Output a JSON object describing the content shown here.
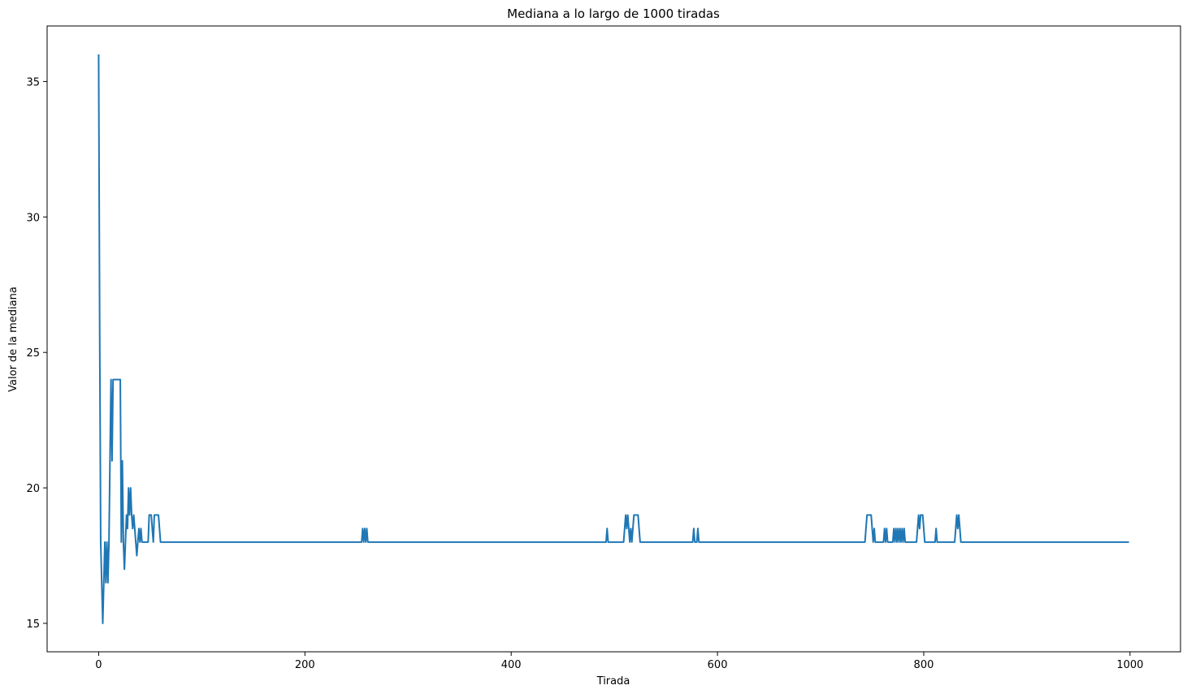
{
  "chart_data": {
    "type": "line",
    "title": "Mediana a lo largo de 1000 tiradas",
    "xlabel": "Tirada",
    "ylabel": "Valor de la mediana",
    "xlim": [
      -49.95,
      1048.95
    ],
    "ylim": [
      13.95,
      37.05
    ],
    "xticks": [
      0,
      200,
      400,
      600,
      800,
      1000
    ],
    "yticks": [
      15,
      20,
      25,
      30,
      35
    ],
    "series": [
      {
        "color": "#1f77b4",
        "x": [
          0,
          1,
          2,
          3,
          4,
          5,
          6,
          7,
          8,
          9,
          10,
          11,
          12,
          13,
          14,
          15,
          21,
          22,
          23,
          24,
          25,
          26,
          27,
          28,
          29,
          30,
          31,
          32,
          33,
          34,
          35,
          36,
          37,
          38,
          39,
          40,
          41,
          42,
          48,
          49,
          51,
          52,
          53,
          54,
          58,
          59,
          60,
          255,
          256,
          257,
          258,
          259,
          260,
          261,
          492,
          493,
          494,
          509,
          510,
          511,
          512,
          513,
          514,
          515,
          516,
          517,
          518,
          519,
          523,
          524,
          525,
          576,
          577,
          578,
          580,
          581,
          582,
          743,
          744,
          745,
          749,
          750,
          751,
          752,
          753,
          761,
          762,
          763,
          764,
          765,
          770,
          771,
          772,
          773,
          774,
          775,
          776,
          777,
          778,
          779,
          780,
          781,
          782,
          793,
          794,
          795,
          796,
          797,
          799,
          800,
          801,
          811,
          812,
          813,
          830,
          831,
          832,
          833,
          834,
          835,
          836,
          999
        ],
        "values": [
          36,
          26,
          18,
          16.5,
          15,
          16.5,
          18,
          16.5,
          18,
          16.5,
          18,
          21,
          24,
          21,
          24,
          24,
          24,
          18,
          21,
          18,
          17,
          18,
          19,
          18.5,
          20,
          19,
          20,
          19,
          18.5,
          19,
          18.5,
          18,
          17.5,
          18,
          18.5,
          18,
          18.5,
          18,
          18,
          19,
          19,
          18.5,
          18,
          19,
          19,
          18.5,
          18,
          18,
          18.5,
          18,
          18.5,
          18,
          18.5,
          18,
          18,
          18.5,
          18,
          18,
          18.5,
          19,
          18.5,
          19,
          18.5,
          18,
          18.5,
          18,
          18.5,
          19,
          19,
          18.5,
          18,
          18,
          18.5,
          18,
          18,
          18.5,
          18,
          18,
          18.5,
          19,
          19,
          18.5,
          18,
          18.5,
          18,
          18,
          18.5,
          18,
          18.5,
          18,
          18,
          18.5,
          18,
          18.5,
          18,
          18.5,
          18,
          18.5,
          18,
          18.5,
          18,
          18.5,
          18,
          18,
          18.5,
          19,
          18.5,
          19,
          19,
          18.5,
          18,
          18,
          18.5,
          18,
          18,
          18.5,
          19,
          18.5,
          19,
          18.5,
          18,
          18
        ]
      }
    ]
  }
}
